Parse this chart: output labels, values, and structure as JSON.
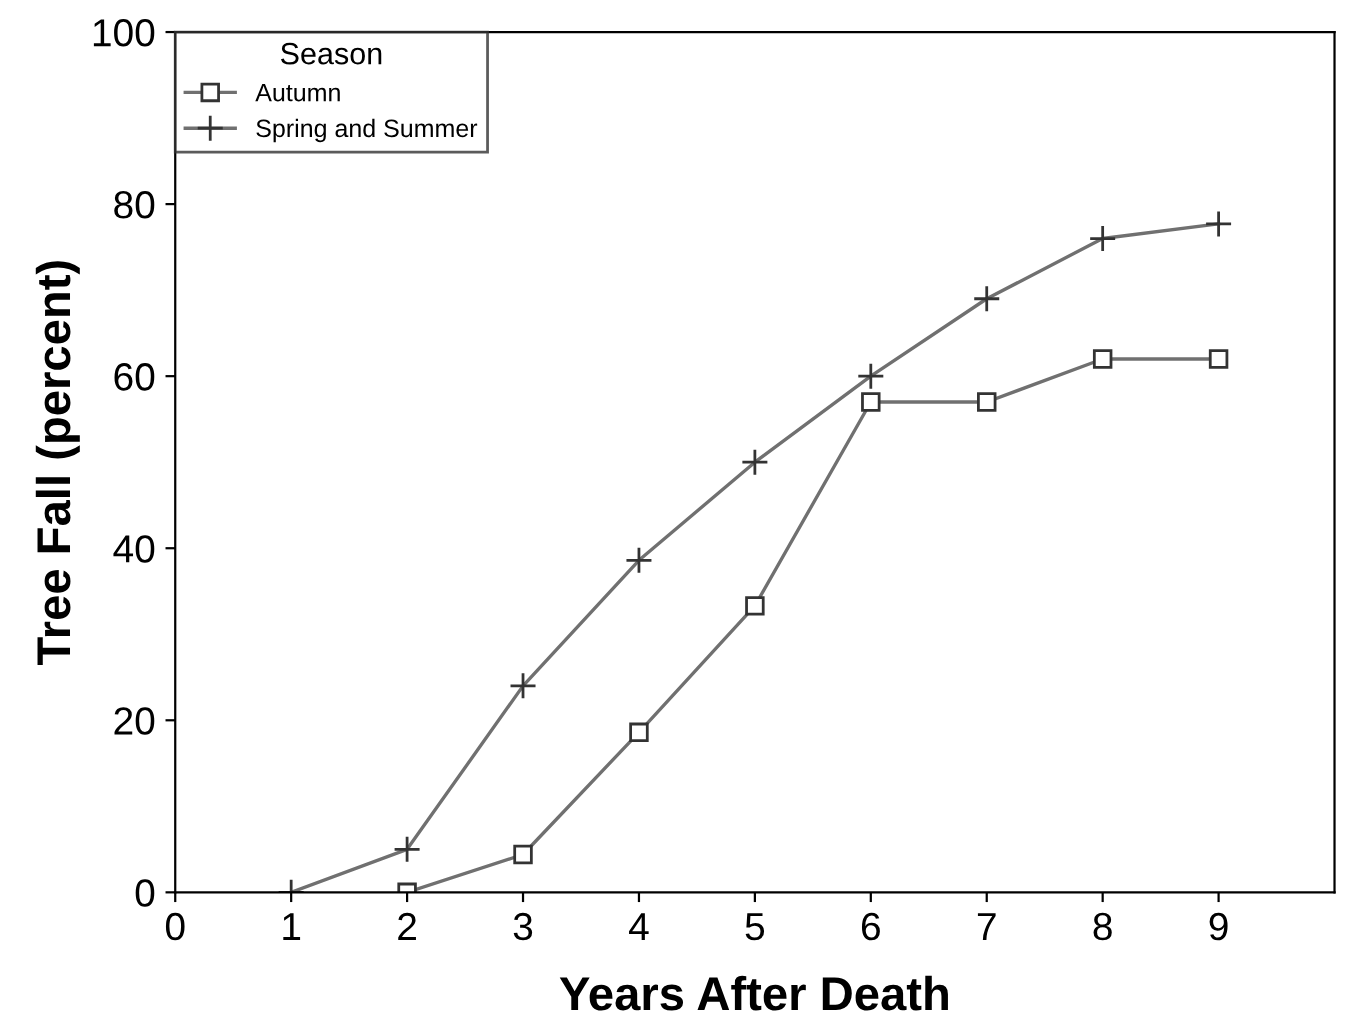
{
  "chart_data": {
    "type": "line",
    "xlabel": "Years After Death",
    "ylabel": "Tree Fall (percent)",
    "legend_title": "Season",
    "legend": "top left",
    "grid": false,
    "xlim": [
      0,
      10
    ],
    "xticks": [
      0,
      1,
      2,
      3,
      4,
      5,
      6,
      7,
      8,
      9
    ],
    "ylim": [
      0,
      100
    ],
    "yticks": [
      0,
      20,
      40,
      60,
      80,
      100
    ],
    "series": [
      {
        "name": "Autumn",
        "color": "#707070",
        "marker": "square",
        "x": [
          2,
          3,
          4,
          5,
          6,
          7,
          8,
          9
        ],
        "values": [
          0,
          4.4,
          18.6,
          33.3,
          57,
          57,
          62,
          62
        ]
      },
      {
        "name": "Spring and Summer",
        "color": "#707070",
        "marker": "cross",
        "x": [
          1,
          2,
          3,
          4,
          5,
          6,
          7,
          8,
          9
        ],
        "values": [
          0,
          5,
          24,
          38.6,
          50,
          60,
          69,
          76,
          77.7
        ]
      }
    ]
  }
}
